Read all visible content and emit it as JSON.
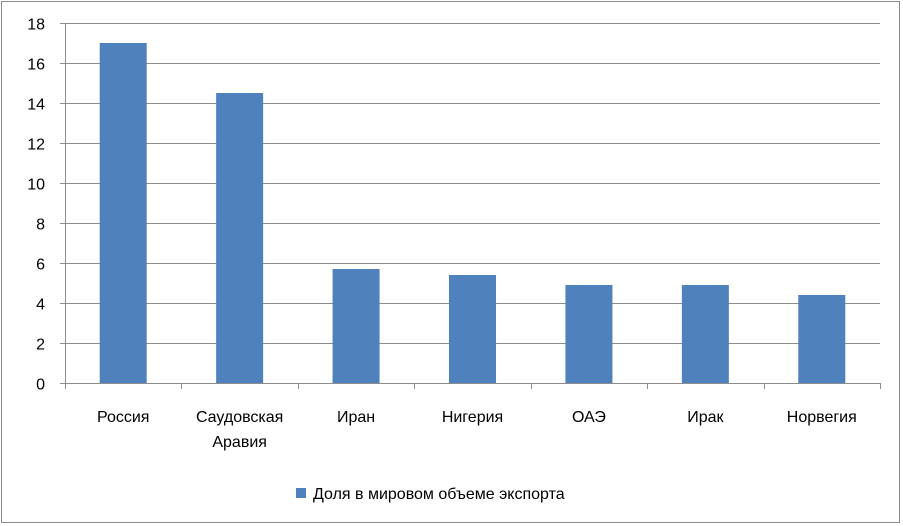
{
  "chart_data": {
    "type": "bar",
    "categories": [
      "Россия",
      "Саудовская Аравия",
      "Иран",
      "Нигерия",
      "ОАЭ",
      "Ирак",
      "Норвегия"
    ],
    "category_lines": [
      [
        "Россия"
      ],
      [
        "Саудовская",
        "Аравия"
      ],
      [
        "Иран"
      ],
      [
        "Нигерия"
      ],
      [
        "ОАЭ"
      ],
      [
        "Ирак"
      ],
      [
        "Норвегия"
      ]
    ],
    "series": [
      {
        "name": "Доля в мировом объеме экспорта",
        "values": [
          17,
          14.5,
          5.7,
          5.4,
          4.9,
          4.9,
          4.4
        ],
        "color": "#4F81BD"
      }
    ],
    "ylim": [
      0,
      18
    ],
    "yticks": [
      0,
      2,
      4,
      6,
      8,
      10,
      12,
      14,
      16,
      18
    ],
    "grid": true,
    "legend_position": "bottom",
    "gridline_color": "#8c8c8c",
    "axis_color": "#8c8c8c"
  }
}
